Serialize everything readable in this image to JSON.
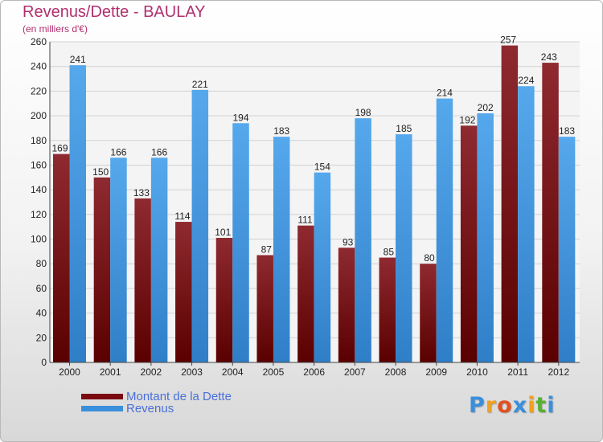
{
  "chart_data": {
    "type": "bar",
    "title": "Revenus/Dette - BAULAY",
    "subtitle": "(en milliers d'€)",
    "categories": [
      "2000",
      "2001",
      "2002",
      "2003",
      "2004",
      "2005",
      "2006",
      "2007",
      "2008",
      "2009",
      "2010",
      "2011",
      "2012"
    ],
    "series": [
      {
        "name": "Montant de la Dette",
        "color": "#7a0a0f",
        "values": [
          169,
          150,
          133,
          114,
          101,
          87,
          111,
          93,
          85,
          80,
          192,
          257,
          243
        ]
      },
      {
        "name": "Revenus",
        "color": "#3a8fdc",
        "values": [
          241,
          166,
          166,
          221,
          194,
          183,
          154,
          198,
          185,
          214,
          202,
          224,
          183
        ]
      }
    ],
    "ylim": [
      0,
      260
    ],
    "yticks": [
      0,
      20,
      40,
      60,
      80,
      100,
      120,
      140,
      160,
      180,
      200,
      220,
      240,
      260
    ],
    "grid": true,
    "legend_position": "bottom-left"
  },
  "brand": {
    "letters": [
      "P",
      "r",
      "o",
      "x",
      "i",
      "t",
      "i"
    ],
    "colors": [
      "#3a8fdc",
      "#f0a020",
      "#e05020",
      "#3a8fdc",
      "#f0a020",
      "#58b030",
      "#3a8fdc"
    ]
  }
}
